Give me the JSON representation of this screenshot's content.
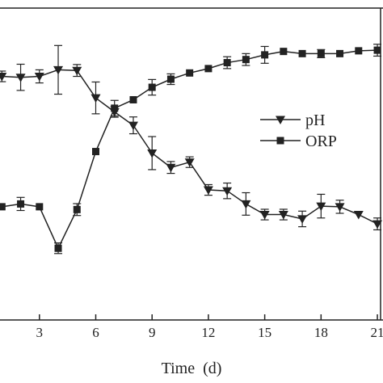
{
  "chart_data": {
    "type": "line",
    "title": "",
    "xlabel": "Time  (d)",
    "ylabel": "",
    "xlim": [
      0.9,
      21.3
    ],
    "ylim": [
      0,
      100
    ],
    "xticks": [
      3,
      6,
      9,
      12,
      15,
      18,
      21
    ],
    "xtick_labels": [
      "3",
      "6",
      "9",
      "12",
      "15",
      "18",
      "21"
    ],
    "grid": false,
    "legend_position": "center-right",
    "series": [
      {
        "name": "pH",
        "marker": "triangle-down",
        "color": "#222222",
        "x": [
          1,
          2,
          3,
          4,
          5,
          6,
          7,
          8,
          9,
          10,
          11,
          12,
          13,
          14,
          15,
          16,
          17,
          18,
          19,
          20,
          21
        ],
        "y": [
          78.1,
          77.8,
          78.1,
          80.2,
          80.0,
          71.2,
          66.7,
          62.4,
          53.5,
          48.9,
          50.6,
          41.7,
          41.4,
          37.2,
          33.8,
          33.8,
          32.4,
          36.5,
          36.3,
          33.8,
          30.8
        ],
        "err": [
          1.7,
          4.2,
          2.1,
          7.8,
          1.9,
          5.1,
          1.7,
          2.7,
          5.3,
          1.9,
          1.7,
          1.7,
          2.5,
          3.6,
          1.7,
          1.7,
          2.5,
          3.8,
          2.1,
          0,
          1.9
        ]
      },
      {
        "name": "ORP",
        "marker": "square",
        "color": "#222222",
        "x": [
          1,
          2,
          3,
          4,
          5,
          6,
          7,
          8,
          9,
          10,
          11,
          12,
          13,
          14,
          15,
          16,
          17,
          18,
          19,
          20,
          21
        ],
        "y": [
          36.3,
          37.2,
          36.3,
          23.0,
          35.4,
          54.0,
          67.9,
          70.6,
          74.6,
          77.2,
          79.2,
          80.6,
          82.5,
          83.5,
          85.0,
          86.1,
          85.4,
          85.4,
          85.4,
          86.3,
          86.5
        ],
        "err": [
          0,
          2.1,
          0,
          1.7,
          1.9,
          0,
          2.5,
          0,
          2.5,
          1.7,
          0,
          0,
          1.9,
          1.9,
          2.7,
          0,
          0,
          1.3,
          0,
          0,
          1.9
        ]
      }
    ]
  }
}
